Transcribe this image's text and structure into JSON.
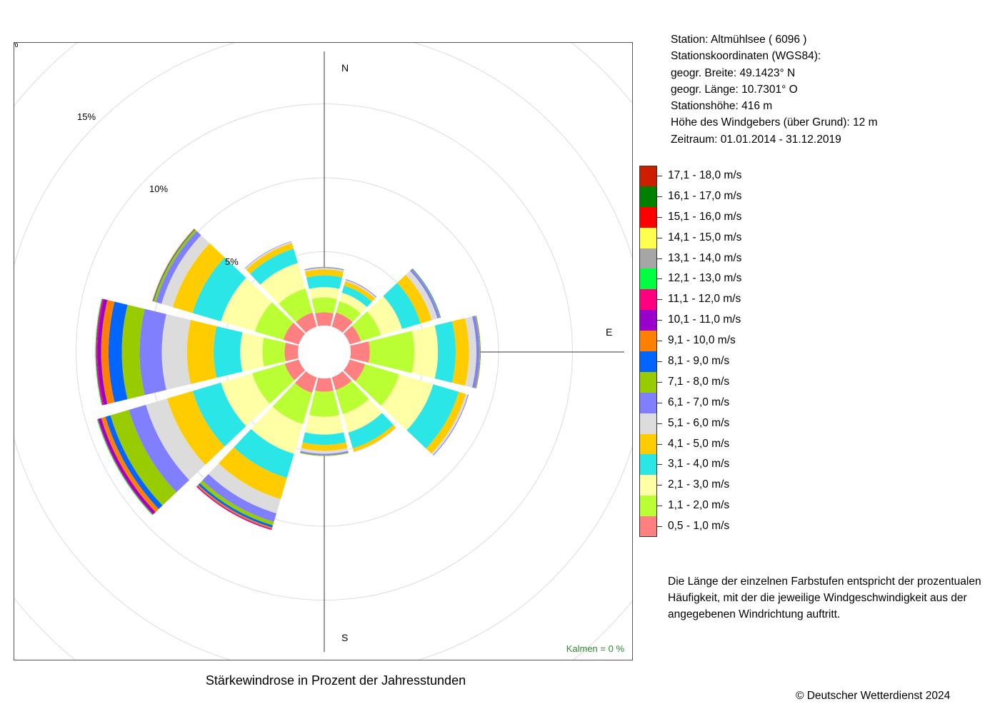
{
  "station": {
    "line1": "Station:  Altmühlsee  ( 6096 )",
    "line2": "Stationskoordinaten (WGS84):",
    "line3": "geogr. Breite: 49.1423° N",
    "line4": "geogr. Länge: 10.7301° O",
    "line5": "Stationshöhe: 416 m",
    "line6": "Höhe des Windgebers (über Grund): 12 m",
    "line7": "Zeitraum: 01.01.2014 - 31.12.2019"
  },
  "note": {
    "line1": "Die Länge der einzelnen Farbstufen entspricht der prozentualen",
    "line2": "Häufigkeit, mit der die jeweilige Windgeschwindigkeit aus der",
    "line3": "angegebenen Windrichtung auftritt."
  },
  "copyright": "© Deutscher Wetterdienst  2024",
  "chart_data": {
    "type": "windrose",
    "title": "Stärkewindrose in Prozent der Jahresstunden",
    "calms_label": "Kalmen  =  0 %",
    "direction_labels": [
      "N",
      "E",
      "S"
    ],
    "ring_labels": [
      "5%",
      "10%",
      "15%",
      "%"
    ],
    "rings_percent": [
      5,
      10,
      15,
      20,
      25
    ],
    "radius_unit": "percent of annual hours",
    "directions_deg": [
      0,
      30,
      60,
      90,
      120,
      150,
      180,
      210,
      240,
      270,
      300,
      330
    ],
    "classes": [
      {
        "label": "0,5 - 1,0 m/s",
        "color": "#FF8080"
      },
      {
        "label": "1,1 - 2,0 m/s",
        "color": "#B9FF33"
      },
      {
        "label": "2,1 - 3,0 m/s",
        "color": "#FFFFA6"
      },
      {
        "label": "3,1 - 4,0 m/s",
        "color": "#2AE6E6"
      },
      {
        "label": "4,1 - 5,0 m/s",
        "color": "#FFCC00"
      },
      {
        "label": "5,1 - 6,0 m/s",
        "color": "#DCDCDC"
      },
      {
        "label": "6,1 - 7,0 m/s",
        "color": "#8080FF"
      },
      {
        "label": "7,1 - 8,0 m/s",
        "color": "#99CC00"
      },
      {
        "label": "8,1 - 9,0 m/s",
        "color": "#0066FF"
      },
      {
        "label": "9,1 - 10,0 m/s",
        "color": "#FF8000"
      },
      {
        "label": "10,1 - 11,0 m/s",
        "color": "#9900CC"
      },
      {
        "label": "11,1 - 12,0 m/s",
        "color": "#FF0080"
      },
      {
        "label": "12,1 - 13,0 m/s",
        "color": "#00FF40"
      },
      {
        "label": "13,1 - 14,0 m/s",
        "color": "#A6A6A6"
      },
      {
        "label": "14,1 - 15,0 m/s",
        "color": "#FFFF4D"
      },
      {
        "label": "15,1 - 16,0 m/s",
        "color": "#FF0000"
      },
      {
        "label": "16,1 - 17,0 m/s",
        "color": "#008000"
      },
      {
        "label": "17,1 - 18,0 m/s",
        "color": "#CC1F00"
      }
    ],
    "sectors": [
      {
        "dir": 0,
        "values": [
          0.9,
          1.0,
          0.7,
          0.8,
          0.4,
          0.1,
          0.05,
          0.02
        ]
      },
      {
        "dir": 30,
        "values": [
          1.0,
          0.8,
          0.6,
          0.5,
          0.3,
          0.1,
          0.05
        ]
      },
      {
        "dir": 60,
        "values": [
          0.8,
          1.4,
          1.5,
          1.3,
          0.8,
          0.4,
          0.15,
          0.05,
          0.03
        ]
      },
      {
        "dir": 90,
        "values": [
          1.3,
          3.0,
          1.6,
          1.2,
          0.9,
          0.5,
          0.2,
          0.05,
          0.02,
          0.02
        ]
      },
      {
        "dir": 120,
        "values": [
          1.1,
          2.4,
          2.4,
          1.8,
          0.5,
          0.15,
          0.05
        ]
      },
      {
        "dir": 150,
        "values": [
          0.9,
          1.7,
          1.3,
          1.1,
          0.25,
          0.05
        ]
      },
      {
        "dir": 180,
        "values": [
          0.9,
          1.7,
          1.2,
          0.7,
          0.4,
          0.2,
          0.1,
          0.05
        ]
      },
      {
        "dir": 210,
        "values": [
          1.1,
          2.2,
          2.1,
          1.7,
          1.5,
          1.0,
          0.6,
          0.25,
          0.15,
          0.1,
          0.05,
          0.03
        ]
      },
      {
        "dir": 240,
        "values": [
          1.0,
          2.3,
          2.2,
          2.0,
          1.8,
          1.5,
          1.2,
          1.3,
          0.35,
          0.3,
          0.2,
          0.05,
          0.05
        ]
      },
      {
        "dir": 270,
        "values": [
          0.9,
          1.5,
          1.5,
          1.8,
          1.8,
          1.7,
          1.5,
          1.2,
          0.9,
          0.5,
          0.25,
          0.1,
          0.05
        ]
      },
      {
        "dir": 300,
        "values": [
          1.1,
          2.0,
          2.4,
          2.0,
          1.4,
          0.8,
          0.4,
          0.15,
          0.05,
          0.05
        ]
      },
      {
        "dir": 330,
        "values": [
          1.0,
          1.7,
          1.8,
          1.0,
          0.4,
          0.1,
          0.03
        ]
      }
    ]
  }
}
